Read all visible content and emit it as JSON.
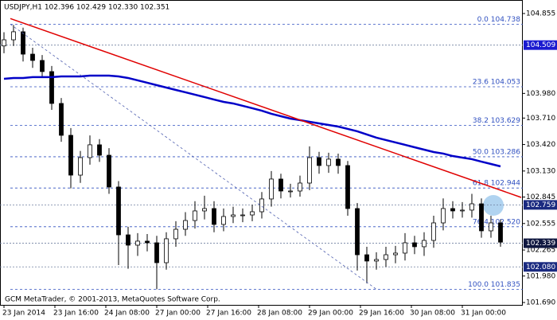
{
  "chart_data": {
    "type": "candlestick",
    "title": "USDJPY,H1  102.396 102.429 102.330 102.351",
    "footer": "GCM MetaTrader, © 2001-2013, MetaQuotes Software Corp.",
    "x": [
      0,
      3,
      6,
      9,
      12,
      15,
      18,
      21,
      24,
      27,
      30,
      33,
      36,
      39,
      42,
      45,
      48,
      51,
      54,
      57,
      60,
      63,
      66,
      69,
      72,
      75,
      78,
      81,
      84,
      87,
      90,
      93,
      96,
      99,
      102,
      105,
      108,
      111,
      114,
      117,
      120,
      123,
      126,
      129,
      132,
      135,
      138,
      141,
      144,
      147,
      150,
      153,
      156
    ],
    "open": [
      104.5,
      104.567,
      104.655,
      104.41,
      104.341,
      104.219,
      103.87,
      103.521,
      103.085,
      103.277,
      103.417,
      103.303,
      102.955,
      102.431,
      102.318,
      102.362,
      102.344,
      102.126,
      102.388,
      102.492,
      102.588,
      102.693,
      102.719,
      102.545,
      102.632,
      102.649,
      102.649,
      102.684,
      102.824,
      103.042,
      102.911,
      102.911,
      102.998,
      103.277,
      103.19,
      103.26,
      103.19,
      102.719,
      102.213,
      102.144,
      102.161,
      102.213,
      102.231,
      102.344,
      102.301,
      102.37,
      102.562,
      102.719,
      102.693,
      102.702,
      102.771,
      102.475,
      102.562
    ],
    "high": [
      104.65,
      104.73,
      104.7,
      104.48,
      104.4,
      104.28,
      103.93,
      103.6,
      103.35,
      103.52,
      103.48,
      103.38,
      103.02,
      102.52,
      102.45,
      102.44,
      102.42,
      102.46,
      102.58,
      102.68,
      102.8,
      102.86,
      102.8,
      102.72,
      102.74,
      102.72,
      102.76,
      102.9,
      103.13,
      103.1,
      102.99,
      103.08,
      103.4,
      103.34,
      103.33,
      103.32,
      103.24,
      102.78,
      102.3,
      102.24,
      102.3,
      102.31,
      102.45,
      102.42,
      102.46,
      102.64,
      102.83,
      102.8,
      102.79,
      102.88,
      102.83,
      102.64,
      102.6
    ],
    "low": [
      104.42,
      104.5,
      104.33,
      104.26,
      104.15,
      103.8,
      103.45,
      102.94,
      103.0,
      103.2,
      103.23,
      102.88,
      102.1,
      102.06,
      102.2,
      102.25,
      101.835,
      102.05,
      102.3,
      102.42,
      102.5,
      102.6,
      102.46,
      102.47,
      102.56,
      102.57,
      102.58,
      102.61,
      102.74,
      102.83,
      102.84,
      102.85,
      102.92,
      103.1,
      103.11,
      103.1,
      102.64,
      102.04,
      101.9,
      102.05,
      102.08,
      102.12,
      102.15,
      102.22,
      102.2,
      102.29,
      102.48,
      102.61,
      102.62,
      102.62,
      102.4,
      102.4,
      102.3
    ],
    "close": [
      104.567,
      104.655,
      104.41,
      104.341,
      104.219,
      103.87,
      103.521,
      103.085,
      103.277,
      103.417,
      103.303,
      102.955,
      102.431,
      102.318,
      102.362,
      102.344,
      102.126,
      102.388,
      102.492,
      102.588,
      102.693,
      102.719,
      102.545,
      102.632,
      102.649,
      102.649,
      102.684,
      102.824,
      103.042,
      102.911,
      102.911,
      102.998,
      103.277,
      103.19,
      103.26,
      103.19,
      102.719,
      102.213,
      102.144,
      102.161,
      102.213,
      102.231,
      102.344,
      102.301,
      102.37,
      102.562,
      102.719,
      102.693,
      102.702,
      102.771,
      102.475,
      102.562,
      102.351
    ],
    "ma": {
      "color": "#0000c8",
      "values": [
        104.14,
        104.149,
        104.149,
        104.158,
        104.158,
        104.158,
        104.166,
        104.166,
        104.166,
        104.175,
        104.175,
        104.175,
        104.166,
        104.149,
        104.123,
        104.097,
        104.07,
        104.044,
        104.018,
        103.992,
        103.966,
        103.94,
        103.913,
        103.887,
        103.87,
        103.844,
        103.818,
        103.791,
        103.757,
        103.73,
        103.704,
        103.687,
        103.669,
        103.652,
        103.634,
        103.617,
        103.591,
        103.565,
        103.53,
        103.495,
        103.469,
        103.443,
        103.417,
        103.39,
        103.364,
        103.338,
        103.321,
        103.294,
        103.277,
        103.26,
        103.233,
        103.207,
        103.181
      ]
    },
    "trendlines": [
      {
        "color": "#e00000",
        "dash": "none",
        "x": [
          2,
          162.5
        ],
        "values": [
          104.8,
          102.841
        ]
      },
      {
        "color": "#5060b0",
        "dash": "3 3",
        "x": [
          2,
          117
        ],
        "values": [
          104.738,
          101.835
        ]
      }
    ],
    "fib": {
      "color": "#3050c0",
      "x_start": 2,
      "levels": [
        {
          "value": 104.738,
          "label": "0.0 104.738"
        },
        {
          "value": 104.053,
          "label": "23.6 104.053"
        },
        {
          "value": 103.629,
          "label": "38.2 103.629"
        },
        {
          "value": 103.286,
          "label": "50.0 103.286"
        },
        {
          "value": 102.944,
          "label": "61.8 102.944"
        },
        {
          "value": 102.52,
          "label": "76.4 102.520"
        },
        {
          "value": 101.835,
          "label": "100.0 101.835"
        }
      ]
    },
    "markers": [
      {
        "value": 104.509,
        "color": "#1a1ad0"
      },
      {
        "value": 102.759,
        "color": "#1a2a80"
      },
      {
        "value": 102.339,
        "color": "#101840"
      },
      {
        "value": 102.08,
        "label": "102.080",
        "color": "#1a2a80"
      }
    ],
    "xlim": [
      -1.25,
      163
    ],
    "ylim": [
      101.664,
      105.003
    ],
    "yticks": [
      104.855,
      {
        "value": 103.98,
        "label": "103.980"
      },
      {
        "value": 103.71,
        "label": "103.710"
      },
      {
        "value": 103.42,
        "label": "103.420"
      },
      {
        "value": 103.13,
        "label": "103.130"
      },
      102.845,
      102.555,
      102.265,
      {
        "value": 101.98,
        "label": "101.980"
      },
      {
        "value": 101.69,
        "label": "101.690"
      }
    ],
    "xticks": [
      {
        "value": 0,
        "label": "23 Jan 2014"
      },
      {
        "value": 16,
        "label": "23 Jan 16:00"
      },
      {
        "value": 32,
        "label": "24 Jan 08:00"
      },
      {
        "value": 48,
        "label": "27 Jan 00:00"
      },
      {
        "value": 64,
        "label": "27 Jan 16:00"
      },
      {
        "value": 80,
        "label": "28 Jan 08:00"
      },
      {
        "value": 96,
        "label": "29 Jan 00:00"
      },
      {
        "value": 112,
        "label": "29 Jan 16:00"
      },
      {
        "value": 128,
        "label": "30 Jan 08:00"
      },
      {
        "value": 144,
        "label": "31 Jan 00:00"
      }
    ],
    "grid": false
  }
}
